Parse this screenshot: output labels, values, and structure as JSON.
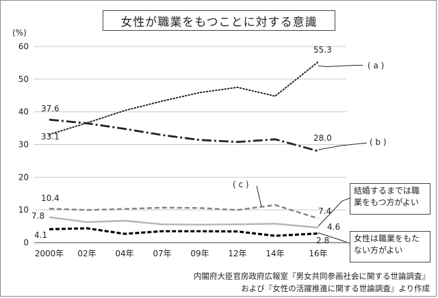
{
  "chart_data": {
    "type": "line",
    "title": "女性が職業をもつことに対する意識",
    "ylabel": "(%)",
    "ylim": [
      0,
      60
    ],
    "yticks": [
      "0",
      "10",
      "20",
      "30",
      "40",
      "50",
      "60"
    ],
    "categories": [
      "2000年",
      "02年",
      "04年",
      "07年",
      "09年",
      "12年",
      "14年",
      "16年"
    ],
    "grid": "horizontal",
    "series": [
      {
        "name": "( a )",
        "values": [
          33.1,
          36.6,
          40.4,
          43.3,
          45.9,
          47.5,
          44.8,
          55.3
        ],
        "start_label": "33.1",
        "end_label": "55.3",
        "color": "#222222",
        "style": "dotted"
      },
      {
        "name": "( b )",
        "values": [
          37.6,
          36.5,
          34.8,
          32.9,
          31.4,
          30.8,
          31.6,
          28.0
        ],
        "start_label": "37.6",
        "end_label": "28.0",
        "color": "#222222",
        "style": "dashdot"
      },
      {
        "name": "( c )",
        "values": [
          10.4,
          10.0,
          10.3,
          10.7,
          10.6,
          10.0,
          11.5,
          7.4
        ],
        "start_label": "10.4",
        "end_label": "7.4",
        "color": "#808080",
        "style": "dashed"
      },
      {
        "name": "結婚するまでは職業をもつ方がよい",
        "values": [
          7.8,
          6.3,
          6.7,
          5.6,
          5.5,
          5.6,
          5.8,
          4.6
        ],
        "start_label": "7.8",
        "end_label": "4.6",
        "color": "#b4b4b4",
        "style": "solid"
      },
      {
        "name": "女性は職業をもたない方がよい",
        "values": [
          4.1,
          4.4,
          2.7,
          3.5,
          3.5,
          3.4,
          2.1,
          2.8
        ],
        "start_label": "4.1",
        "end_label": "2.8",
        "color": "#000000",
        "style": "dashed-bold"
      }
    ]
  },
  "legend": {
    "a": "( a )",
    "b": "( b )",
    "c": "( c )",
    "married_line1": "結婚するまでは職",
    "married_line2": "業をもつ方がよい",
    "no_job_line1": "女性は職業をもた",
    "no_job_line2": "ない方がよい"
  },
  "source": {
    "line1": "内閣府大臣官房政府広報室『男女共同参画社会に関する世論調査』",
    "line2": "および『女性の活躍推進に関する世論調査』より作成"
  }
}
